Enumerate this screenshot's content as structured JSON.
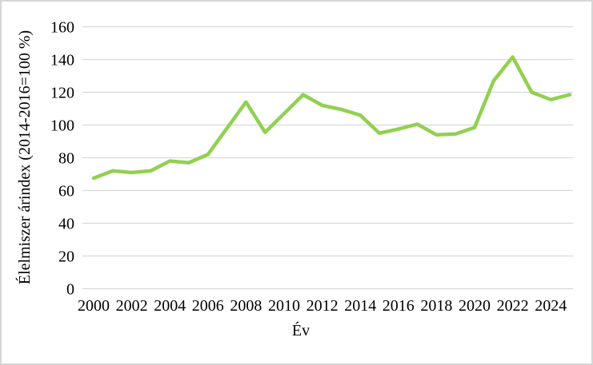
{
  "figure": {
    "background": "#FFFFFF",
    "border_color": "#D6D6D6"
  },
  "chart_data": {
    "type": "line",
    "x": [
      2000,
      2001,
      2002,
      2003,
      2004,
      2005,
      2006,
      2007,
      2008,
      2009,
      2010,
      2011,
      2012,
      2013,
      2014,
      2015,
      2016,
      2017,
      2018,
      2019,
      2020,
      2021,
      2022,
      2023,
      2024,
      2025
    ],
    "series": [
      {
        "name": "Élelmiszer árindex",
        "values": [
          67.5,
          72,
          71,
          72,
          78,
          77,
          82,
          98,
          114,
          95.5,
          107,
          118.5,
          112,
          109.5,
          106,
          95,
          97.5,
          100.5,
          94,
          94.5,
          98.5,
          127,
          141.5,
          120,
          115.5,
          118.5
        ],
        "color": "#92D050",
        "stroke_width": 4.5
      }
    ],
    "title": "",
    "xlabel": "Év",
    "ylabel": "Élelmiszer árindex (2014-2016=100 %)",
    "ylim": [
      0,
      160
    ],
    "ytick_step": 20,
    "yticks": [
      0,
      20,
      40,
      60,
      80,
      100,
      120,
      140,
      160
    ],
    "xticks": [
      2000,
      2002,
      2004,
      2006,
      2008,
      2010,
      2012,
      2014,
      2016,
      2018,
      2020,
      2022,
      2024
    ],
    "grid": "horizontal",
    "gridline_color": "#D9D9D9",
    "text_color": "#000000",
    "legend": "none"
  }
}
